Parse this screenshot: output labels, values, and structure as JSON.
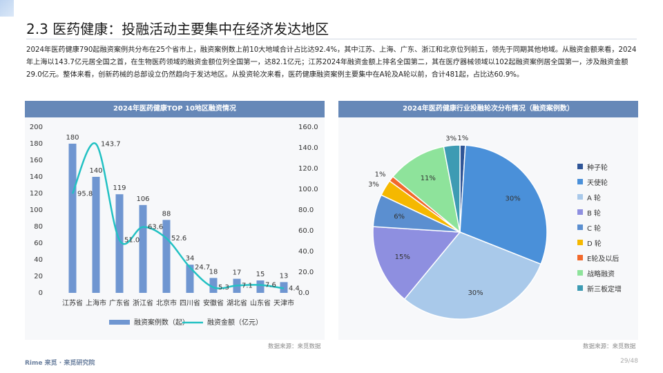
{
  "slide": {
    "title": "2.3 医药健康：投融活动主要集中在经济发达地区",
    "paragraph": "2024年医药健康790起融资案例共分布在25个省市上，融资案例数上前10大地域合计占比达92.4%，其中江苏、上海、广东、浙江和北京位列前五，领先于同期其他地域。从融资金额来看，2024年上海以143.7亿元居全国之首，在生物医药领域的融资金额位列全国第一，达82.1亿元；江苏2024年融资金额上排名全国第二，其在医疗器械领域以102起融资案例居全国第一，涉及融资金额29.0亿元。整体来看，创新药械的总部设立仍然趋向于发达地区。从投资轮次来看，医药健康融资案例主要集中在A轮及A轮以前，合计481起，占比达60.9%。",
    "source_left": "数据来源：来觅数据",
    "source_right": "数据来源：来觅数据",
    "footer_logo": "Rime 来觅 · 来觅研究院",
    "page": "29/48",
    "colors": {
      "bar": "#6f96d1",
      "line": "#22c1c3",
      "header": "#6688b8"
    }
  },
  "chart_data": [
    {
      "type": "bar",
      "title": "2024年医药健康TOP  10地区融资情况",
      "categories": [
        "江苏省",
        "上海市",
        "广东省",
        "浙江省",
        "北京市",
        "四川省",
        "安徽省",
        "湖北省",
        "山东省",
        "天津市"
      ],
      "series": [
        {
          "name": "融资案例数（起）",
          "type": "bar",
          "axis": "left",
          "values": [
            180,
            140,
            119,
            106,
            88,
            34,
            18,
            17,
            15,
            13
          ]
        },
        {
          "name": "融资金额（亿元）",
          "type": "line",
          "axis": "right",
          "values": [
            95.8,
            143.7,
            51.0,
            63.6,
            52.6,
            24.7,
            5.3,
            7.1,
            7.6,
            4.4
          ]
        }
      ],
      "ylim": [
        0,
        200
      ],
      "y_ticks": [
        "0",
        "20",
        "40",
        "60",
        "80",
        "100",
        "120",
        "140",
        "160",
        "180",
        "200"
      ],
      "y2lim": [
        0,
        160
      ],
      "y2_ticks": [
        "0.0",
        "20.0",
        "40.0",
        "60.0",
        "80.0",
        "100.0",
        "120.0",
        "140.0",
        "160.0"
      ],
      "bar_labels": [
        "180",
        "140",
        "119",
        "106",
        "88",
        "34",
        "18",
        "17",
        "15",
        "13"
      ],
      "line_labels": [
        "95.8",
        "143.7",
        "51.0",
        "63.6",
        "52.6",
        "24.7",
        "5.3",
        "7.1",
        "7.6",
        "4.4"
      ],
      "legend": "bottom",
      "grid": false
    },
    {
      "type": "pie",
      "title": "2024年医药健康行业投融轮次分布情况（融资案例数）",
      "labels": [
        "种子轮",
        "天使轮",
        "A 轮",
        "B 轮",
        "C 轮",
        "D 轮",
        "E轮及以后",
        "战略融资",
        "新三板定增"
      ],
      "values": [
        1,
        30,
        30,
        15,
        6,
        3,
        1,
        11,
        3
      ],
      "value_labels": [
        "1%",
        "30%",
        "30%",
        "15%",
        "6%",
        "3%",
        "1%",
        "11%",
        "3%"
      ],
      "colors": [
        "#2f5597",
        "#4a90d9",
        "#a9c9ea",
        "#8e8fe0",
        "#5b8fd0",
        "#f5b800",
        "#f2692b",
        "#8ee39b",
        "#3d9bb3"
      ],
      "legend": "right"
    }
  ]
}
